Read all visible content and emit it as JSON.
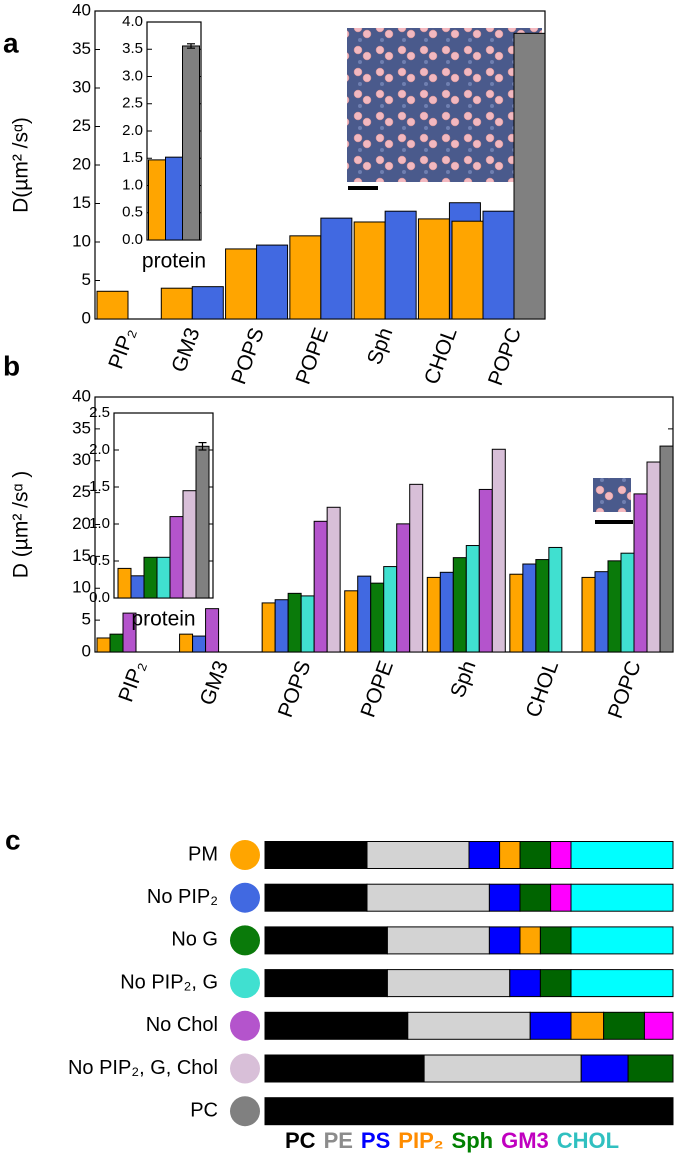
{
  "chart_data": [
    {
      "type": "bar",
      "label": "a",
      "y_label": "D(µm² /sᵅ)",
      "categories": [
        "PIP₂",
        "GM3",
        "POPS",
        "POPE",
        "Sph",
        "CHOL",
        "POPC"
      ],
      "series": [
        {
          "color": "#ffa500",
          "values": [
            3.6,
            4.0,
            9.1,
            10.8,
            12.6,
            13.0,
            12.7
          ]
        },
        {
          "color": "#4169e1",
          "values": [
            null,
            4.2,
            9.6,
            13.1,
            14.0,
            15.1,
            14.0
          ]
        },
        {
          "color": "#808080",
          "values": [
            null,
            null,
            null,
            null,
            null,
            null,
            37.1
          ]
        }
      ],
      "ylim": [
        0,
        40
      ],
      "yticks": [
        0,
        5,
        10,
        15,
        20,
        25,
        30,
        35,
        40
      ]
    },
    {
      "type": "bar",
      "categories": [
        "protein"
      ],
      "series": [
        {
          "color": "#ffa500",
          "values": [
            1.47
          ]
        },
        {
          "color": "#4169e1",
          "values": [
            1.52
          ]
        },
        {
          "color": "#808080",
          "values": [
            3.56
          ],
          "errors": [
            0.04
          ]
        }
      ],
      "ylim": [
        0,
        4
      ],
      "yticks": [
        {
          "value": 0,
          "label": "0.0"
        },
        0.5,
        {
          "value": 1,
          "label": "1.0"
        },
        1.5,
        {
          "value": 2,
          "label": "2.0"
        },
        2.5,
        {
          "value": 3,
          "label": "3.0"
        },
        3.5,
        {
          "value": 4,
          "label": "4.0"
        }
      ]
    },
    {
      "type": "bar",
      "label": "b",
      "y_label": "D (µm² /sᵅ )",
      "categories": [
        "PIP₂",
        "GM3",
        "POPS",
        "POPE",
        "Sph",
        "CHOL",
        "POPC"
      ],
      "series": [
        {
          "color": "#ffa500",
          "values": [
            2.2,
            2.8,
            7.7,
            9.6,
            11.7,
            12.2,
            11.7
          ]
        },
        {
          "color": "#4169e1",
          "values": [
            null,
            2.5,
            8.2,
            11.9,
            12.5,
            13.8,
            12.6
          ]
        },
        {
          "color": "#0a7a0a",
          "values": [
            2.8,
            null,
            9.2,
            10.8,
            14.8,
            14.5,
            14.3
          ]
        },
        {
          "color": "#40e0d0",
          "values": [
            null,
            null,
            8.8,
            13.4,
            16.7,
            16.4,
            15.5
          ]
        },
        {
          "color": "#b454cc",
          "values": [
            6.1,
            6.8,
            20.5,
            20.1,
            25.5,
            null,
            24.8
          ]
        },
        {
          "color": "#d8bfd8",
          "values": [
            null,
            null,
            22.7,
            26.3,
            31.8,
            null,
            29.8
          ]
        },
        {
          "color": "#808080",
          "values": [
            null,
            null,
            null,
            null,
            null,
            null,
            32.3
          ]
        }
      ],
      "ylim": [
        0,
        40
      ],
      "yticks": [
        0,
        5,
        10,
        15,
        20,
        25,
        30,
        35,
        40
      ]
    },
    {
      "type": "bar",
      "categories": [
        "protein"
      ],
      "series": [
        {
          "color": "#ffa500",
          "values": [
            0.4
          ]
        },
        {
          "color": "#4169e1",
          "values": [
            0.3
          ]
        },
        {
          "color": "#0a7a0a",
          "values": [
            0.55
          ]
        },
        {
          "color": "#40e0d0",
          "values": [
            0.55
          ]
        },
        {
          "color": "#b454cc",
          "values": [
            1.1
          ]
        },
        {
          "color": "#d8bfd8",
          "values": [
            1.45
          ]
        },
        {
          "color": "#808080",
          "values": [
            2.05
          ],
          "errors": [
            0.05
          ]
        }
      ],
      "ylim": [
        0,
        2.5
      ],
      "yticks": [
        {
          "value": 0,
          "label": "0.0"
        },
        0.5,
        {
          "value": 1,
          "label": "1.0"
        },
        1.5,
        {
          "value": 2,
          "label": "2.0"
        },
        2.5
      ]
    },
    {
      "type": "stacked_bar",
      "label": "c",
      "categories": [
        "PM",
        "No PIP₂",
        "No G",
        "No PIP₂, G",
        "No Chol",
        "No PIP₂, G, Chol",
        "PC"
      ],
      "marker_colors": [
        "#ffa500",
        "#4169e1",
        "#0a7a0a",
        "#40e0d0",
        "#b454cc",
        "#d8bfd8",
        "#808080"
      ],
      "xlim": [
        0,
        100
      ],
      "series": [
        {
          "name": "PC",
          "color": "#000000",
          "label_color": "#000000",
          "values": [
            25,
            25,
            30,
            30,
            35,
            39,
            100
          ]
        },
        {
          "name": "PE",
          "color": "#d3d3d3",
          "label_color": "#8c8c8c",
          "values": [
            25,
            30,
            25,
            30,
            30,
            38.5,
            null
          ]
        },
        {
          "name": "PS",
          "color": "#0000ff",
          "label_color": "#0000ff",
          "values": [
            7.5,
            7.5,
            7.5,
            7.5,
            10,
            11.5,
            null
          ]
        },
        {
          "name": "PIP₂",
          "color": "#ffa500",
          "label_color": "#ff8c00",
          "values": [
            5,
            null,
            5,
            null,
            8,
            null,
            null
          ]
        },
        {
          "name": "Sph",
          "color": "#006400",
          "label_color": "#008000",
          "values": [
            7.5,
            7.5,
            7.5,
            7.5,
            10,
            11,
            null
          ]
        },
        {
          "name": "GM3",
          "color": "#ff00ff",
          "label_color": "#c000c0",
          "values": [
            5,
            5,
            null,
            null,
            7,
            null,
            null
          ]
        },
        {
          "name": "CHOL",
          "color": "#00ffff",
          "label_color": "#30c0c0",
          "values": [
            25,
            25,
            25,
            25,
            null,
            null,
            null
          ]
        }
      ]
    }
  ]
}
